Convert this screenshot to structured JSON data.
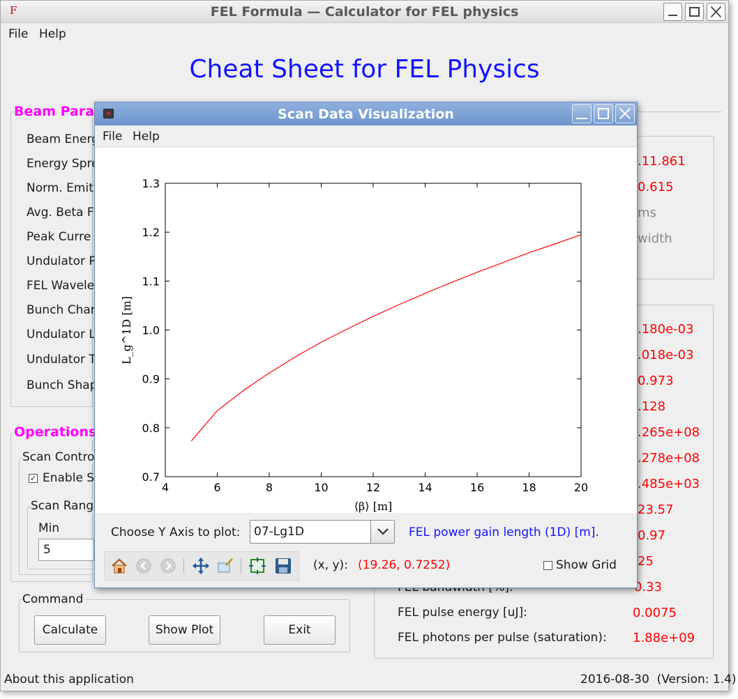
{
  "main_window": {
    "title": "FEL Formula — Calculator for FEL physics",
    "app_icon_letter": "F",
    "menu": [
      "File",
      "Help"
    ],
    "page_title": "Cheat Sheet for FEL Physics",
    "beam_params": {
      "legend": "Beam Param",
      "labels": [
        "Beam Energ",
        "Energy Spre",
        "Norm. Emit",
        "Avg. Beta Fu",
        "Peak Curre",
        "Undulator P",
        "FEL Wavele",
        "Bunch Char",
        "Undulator L",
        "Undulator T",
        "Bunch Shap"
      ]
    },
    "operations": {
      "legend": "Operations",
      "scan_control_legend": "Scan Contro",
      "enable_scan_label": "Enable Sc",
      "enable_scan_checked": true,
      "scan_range_legend": "Scan Range",
      "min_label": "Min",
      "min_value": "5"
    },
    "command": {
      "legend": "Command",
      "calculate_label": "Calculate",
      "show_plot_label": "Show Plot",
      "exit_label": "Exit"
    },
    "top_right": {
      "values": [
        ".11.861",
        "0.615"
      ],
      "gray_texts": [
        "ms",
        "width"
      ]
    },
    "results": {
      "values": [
        ".180e-03",
        ".018e-03",
        "0.973",
        ".128",
        ".265e+08",
        ".278e+08",
        ".485e+03",
        "23.57",
        "0.97",
        "25",
        "0.33"
      ],
      "bandwidth_label_fragment": "FEL bandwidth [%]:",
      "pulse_energy_label": "FEL pulse energy [uJ]:",
      "pulse_energy_value": "0.0075",
      "photons_label": "FEL photons per pulse (saturation):",
      "photons_value": "1.88e+09"
    },
    "status_left": "About this application",
    "status_right": "2016-08-30  (Version: 1.4)"
  },
  "dialog": {
    "title": "Scan Data Visualization",
    "menu": [
      "File",
      "Help"
    ],
    "choose_y_label": "Choose Y Axis to plot:",
    "combo_value": "07-Lg1D",
    "y_description": "FEL power gain length (1D) [m].",
    "xy_label": "(x, y):",
    "xy_value": "(19.26, 0.7252)",
    "show_grid_label": "Show Grid",
    "show_grid_checked": false,
    "toolbar_icons": [
      "home-icon",
      "back-icon",
      "forward-icon",
      "pan-icon",
      "zoom-icon",
      "subplots-icon",
      "save-icon"
    ]
  },
  "chart_data": {
    "type": "line",
    "xlabel": "⟨β⟩ [m]",
    "ylabel": "L_g^1D [m]",
    "xlim": [
      4,
      20
    ],
    "ylim": [
      0.7,
      1.3
    ],
    "xticks": [
      4,
      6,
      8,
      10,
      12,
      14,
      16,
      18,
      20
    ],
    "yticks": [
      0.7,
      0.8,
      0.9,
      1.0,
      1.1,
      1.2,
      1.3
    ],
    "grid": false,
    "line_color": "#ff0000",
    "series": [
      {
        "x": [
          5,
          6,
          7,
          8,
          9,
          10,
          11,
          12,
          13,
          14,
          15,
          16,
          17,
          18,
          19,
          20
        ],
        "values": [
          0.773,
          0.835,
          0.876,
          0.912,
          0.945,
          0.975,
          1.002,
          1.028,
          1.052,
          1.075,
          1.097,
          1.118,
          1.138,
          1.158,
          1.176,
          1.195
        ]
      }
    ]
  }
}
